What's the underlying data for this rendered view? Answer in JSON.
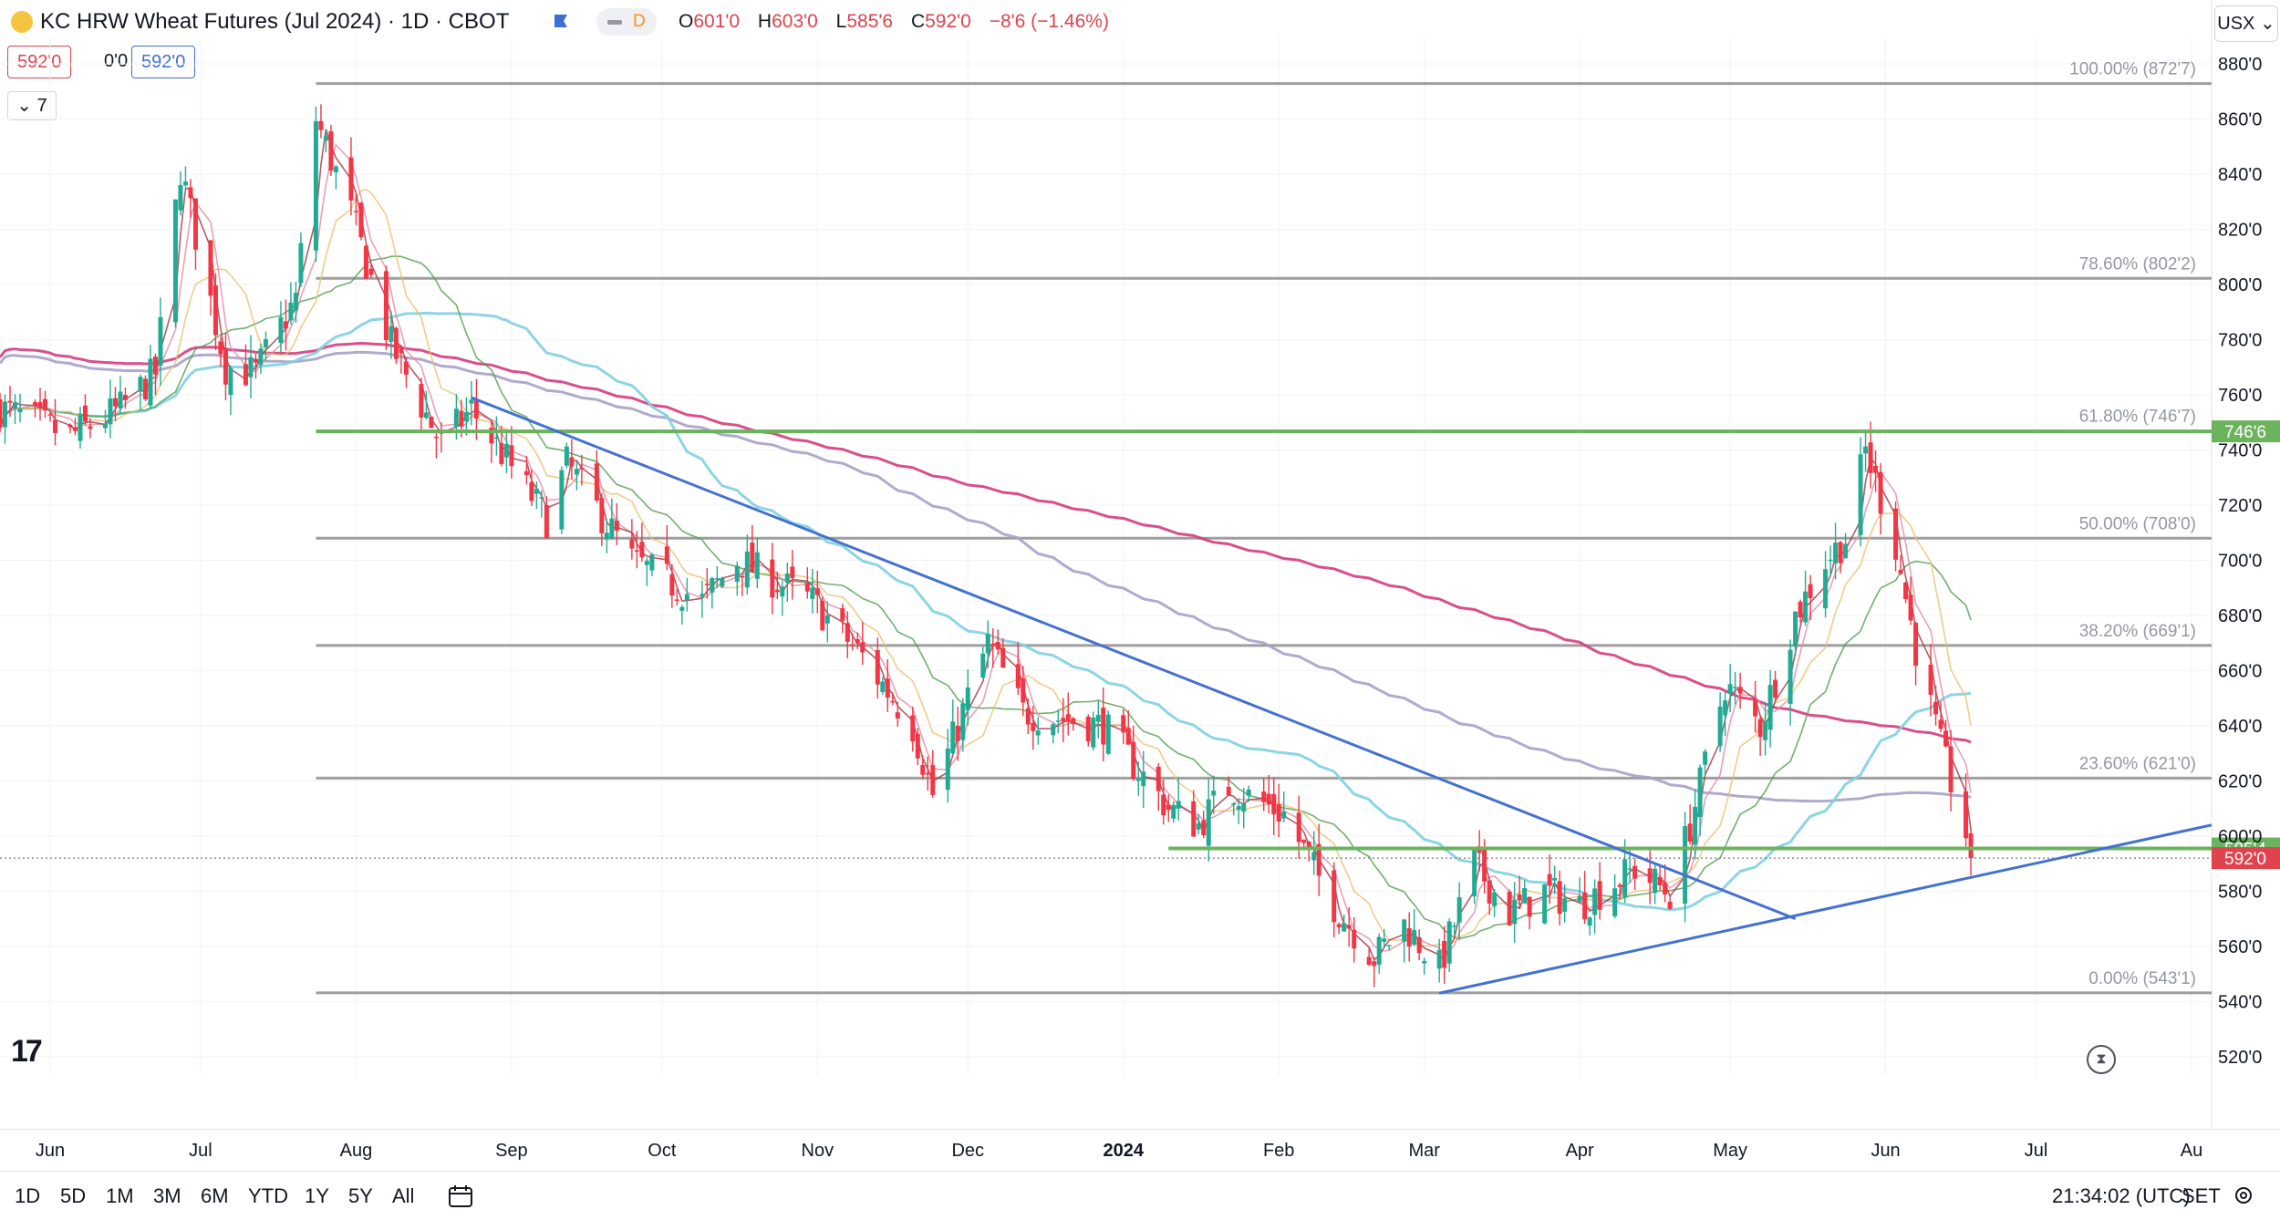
{
  "header": {
    "title": "KC HRW Wheat Futures (Jul 2024) · 1D · CBOT",
    "pill_label": "D",
    "ohlc": [
      {
        "k": "O",
        "v": "601'0"
      },
      {
        "k": "H",
        "v": "603'0"
      },
      {
        "k": "L",
        "v": "585'6"
      },
      {
        "k": "C",
        "v": "592'0"
      },
      {
        "k": "",
        "v": "−8'6 (−1.46%)"
      }
    ],
    "currency": "USX"
  },
  "indicators": {
    "left": "592'0",
    "mid": "0'0",
    "right": "592'0"
  },
  "collapse_label": "7",
  "toolbar": {
    "ranges": [
      "1D",
      "5D",
      "1M",
      "3M",
      "6M",
      "YTD",
      "1Y",
      "5Y",
      "All"
    ],
    "clock": "21:34:02 (UTC)",
    "settings_label": "SET"
  },
  "colors": {
    "bull": "#22ab94",
    "bear": "#f23645",
    "trendline": "#4471d0",
    "support": "#6cb35e",
    "fib": "#9e9e9e",
    "ma200": "#d63c7e",
    "ma100": "#a7a1c9",
    "ma50": "#7fd0e0",
    "ma20": "#4f9d4a",
    "ma10": "#e8c170",
    "ma5": "#e38aa2",
    "ma3": "#a33340"
  },
  "chart_data": {
    "type": "candlestick",
    "instrument": "KC HRW Wheat Futures (Jul 2024)",
    "y_axis": {
      "range": [
        513,
        885
      ],
      "ticks": [
        "520'0",
        "540'0",
        "560'0",
        "580'0",
        "600'0",
        "620'0",
        "640'0",
        "660'0",
        "680'0",
        "700'0",
        "720'0",
        "740'0",
        "760'0",
        "780'0",
        "800'0",
        "820'0",
        "840'0",
        "860'0",
        "880'0"
      ]
    },
    "x_axis": {
      "start": "2023-05-22",
      "end": "2024-08-05",
      "ticks": [
        {
          "label": "Jun",
          "date": "2023-06-01"
        },
        {
          "label": "Jul",
          "date": "2023-07-01"
        },
        {
          "label": "Aug",
          "date": "2023-08-01"
        },
        {
          "label": "Sep",
          "date": "2023-09-01"
        },
        {
          "label": "Oct",
          "date": "2023-10-01"
        },
        {
          "label": "Nov",
          "date": "2023-11-01"
        },
        {
          "label": "Dec",
          "date": "2023-12-01"
        },
        {
          "label": "2024",
          "date": "2024-01-01"
        },
        {
          "label": "Feb",
          "date": "2024-02-01"
        },
        {
          "label": "Mar",
          "date": "2024-03-01"
        },
        {
          "label": "Apr",
          "date": "2024-04-01"
        },
        {
          "label": "May",
          "date": "2024-05-01"
        },
        {
          "label": "Jun",
          "date": "2024-06-01"
        },
        {
          "label": "Jul",
          "date": "2024-07-01"
        },
        {
          "label": "Au",
          "date": "2024-08-01"
        }
      ]
    },
    "price_anchors": [
      {
        "date": "2023-05-22",
        "close": 755
      },
      {
        "date": "2023-06-05",
        "close": 745
      },
      {
        "date": "2023-06-15",
        "close": 755
      },
      {
        "date": "2023-06-22",
        "close": 768
      },
      {
        "date": "2023-06-27",
        "close": 842
      },
      {
        "date": "2023-07-06",
        "close": 770
      },
      {
        "date": "2023-07-12",
        "close": 768
      },
      {
        "date": "2023-07-20",
        "close": 795
      },
      {
        "date": "2023-07-24",
        "close": 860
      },
      {
        "date": "2023-07-31",
        "close": 826
      },
      {
        "date": "2023-08-08",
        "close": 778
      },
      {
        "date": "2023-08-18",
        "close": 742
      },
      {
        "date": "2023-08-24",
        "close": 755
      },
      {
        "date": "2023-09-08",
        "close": 715
      },
      {
        "date": "2023-09-12",
        "close": 735
      },
      {
        "date": "2023-09-25",
        "close": 700
      },
      {
        "date": "2023-10-09",
        "close": 685
      },
      {
        "date": "2023-10-16",
        "close": 700
      },
      {
        "date": "2023-10-31",
        "close": 685
      },
      {
        "date": "2023-11-10",
        "close": 665
      },
      {
        "date": "2023-11-20",
        "close": 640
      },
      {
        "date": "2023-11-24",
        "close": 615
      },
      {
        "date": "2023-12-05",
        "close": 670
      },
      {
        "date": "2023-12-12",
        "close": 645
      },
      {
        "date": "2023-12-28",
        "close": 640
      },
      {
        "date": "2024-01-10",
        "close": 610
      },
      {
        "date": "2024-01-16",
        "close": 604
      },
      {
        "date": "2024-01-22",
        "close": 618
      },
      {
        "date": "2024-02-02",
        "close": 608
      },
      {
        "date": "2024-02-12",
        "close": 575
      },
      {
        "date": "2024-02-20",
        "close": 556
      },
      {
        "date": "2024-02-26",
        "close": 568
      },
      {
        "date": "2024-03-04",
        "close": 552
      },
      {
        "date": "2024-03-11",
        "close": 590
      },
      {
        "date": "2024-03-18",
        "close": 572
      },
      {
        "date": "2024-03-25",
        "close": 580
      },
      {
        "date": "2024-04-01",
        "close": 575
      },
      {
        "date": "2024-04-12",
        "close": 588
      },
      {
        "date": "2024-04-19",
        "close": 579
      },
      {
        "date": "2024-04-23",
        "close": 604
      },
      {
        "date": "2024-04-30",
        "close": 655
      },
      {
        "date": "2024-05-07",
        "close": 640
      },
      {
        "date": "2024-05-14",
        "close": 680
      },
      {
        "date": "2024-05-20",
        "close": 700
      },
      {
        "date": "2024-05-24",
        "close": 708
      },
      {
        "date": "2024-05-28",
        "close": 740
      },
      {
        "date": "2024-06-03",
        "close": 705
      },
      {
        "date": "2024-06-07",
        "close": 668
      },
      {
        "date": "2024-06-12",
        "close": 632
      },
      {
        "date": "2024-06-17",
        "close": 601
      },
      {
        "date": "2024-06-18",
        "close": 592
      }
    ],
    "last": {
      "open": 601,
      "high": 603,
      "low": 585.75,
      "close": 592,
      "change": "−8'6 (−1.46%)"
    },
    "fibonacci": [
      {
        "label": "100.00% (872'7)",
        "price": 872.875
      },
      {
        "label": "78.60% (802'2)",
        "price": 802.25
      },
      {
        "label": "61.80% (746'7)",
        "price": 746.875
      },
      {
        "label": "50.00% (708'0)",
        "price": 708
      },
      {
        "label": "38.20% (669'1)",
        "price": 669.125
      },
      {
        "label": "23.60% (621'0)",
        "price": 621
      },
      {
        "label": "0.00% (543'1)",
        "price": 543.125
      }
    ],
    "fib_start_date": "2023-07-24",
    "horizontal_lines": [
      {
        "label": "746'6",
        "price": 746.75,
        "start": "2023-07-24"
      },
      {
        "label": "595'4",
        "price": 595.5,
        "start": "2024-01-10"
      }
    ],
    "trendlines": [
      {
        "from": {
          "date": "2023-08-24",
          "price": 759
        },
        "to": {
          "date": "2024-05-14",
          "price": 570
        }
      },
      {
        "from": {
          "date": "2024-03-04",
          "price": 543
        },
        "to": {
          "date": "2024-08-05",
          "price": 604
        }
      }
    ],
    "last_price_label": "592'0",
    "moving_averages": [
      3,
      5,
      10,
      20,
      50,
      100,
      200
    ]
  }
}
